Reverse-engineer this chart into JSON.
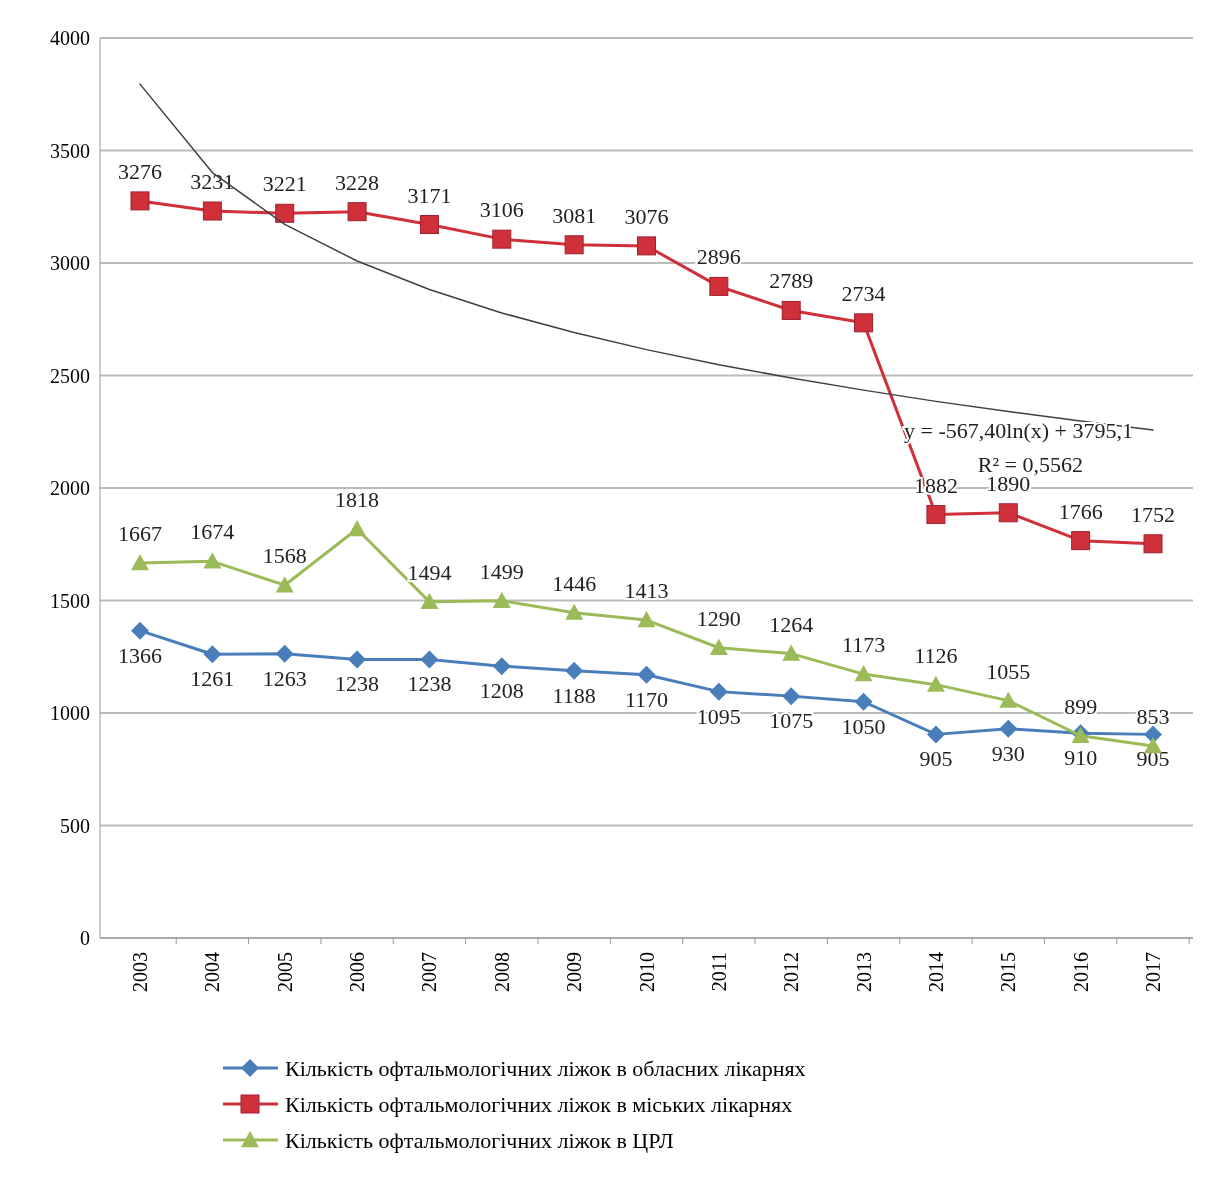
{
  "chart_data": {
    "type": "line",
    "categories": [
      "2003",
      "2004",
      "2005",
      "2006",
      "2007",
      "2008",
      "2009",
      "2010",
      "2011",
      "2012",
      "2013",
      "2014",
      "2015",
      "2016",
      "2017"
    ],
    "ylim": [
      0,
      4000
    ],
    "yticks": [
      0,
      500,
      1000,
      1500,
      2000,
      2500,
      3000,
      3500,
      4000
    ],
    "grid": "y",
    "legend": "bottom",
    "line_style": "solid",
    "series": [
      {
        "name": "Кількість офтальмологічних ліжок в обласних лікарнях",
        "color": "#4a7ebb",
        "marker": "diamond",
        "values": [
          1366,
          1261,
          1263,
          1238,
          1238,
          1208,
          1188,
          1170,
          1095,
          1075,
          1050,
          905,
          930,
          910,
          905
        ],
        "value_labels": [
          "1366",
          "1261",
          "1263",
          "1238",
          "1238",
          "1208",
          "1188",
          "1170",
          "1095",
          "1075",
          "1050",
          "905",
          "930",
          "910",
          "905"
        ]
      },
      {
        "name": "Кількість офтальмологічних ліжок в міських лікарнях",
        "color": "#d0303a",
        "marker": "square",
        "values": [
          3276,
          3231,
          3221,
          3228,
          3171,
          3106,
          3081,
          3076,
          2896,
          2789,
          2734,
          1882,
          1890,
          1766,
          1752
        ],
        "value_labels": [
          "3276",
          "3231",
          "3221",
          "3228",
          "3171",
          "3106",
          "3081",
          "3076",
          "2896",
          "2789",
          "2734",
          "1882",
          "1890",
          "1766",
          "1752"
        ]
      },
      {
        "name": "Кількість офтальмологічних ліжок в ЦРЛ",
        "color": "#9bbb59",
        "marker": "triangle",
        "values": [
          1667,
          1674,
          1568,
          1818,
          1494,
          1499,
          1446,
          1413,
          1290,
          1264,
          1173,
          1126,
          1055,
          899,
          853
        ],
        "value_labels": [
          "1667",
          "1674",
          "1568",
          "1818",
          "1494",
          "1499",
          "1446",
          "1413",
          "1290",
          "1264",
          "1173",
          "1126",
          "1055",
          "899",
          "853"
        ]
      },
      {
        "type": "line",
        "color": "#404040",
        "marker": "none",
        "values": [
          3795,
          3402,
          3172,
          3009,
          2882,
          2778,
          2691,
          2615,
          2548,
          2489,
          2435,
          2385,
          2340,
          2298,
          2258
        ]
      }
    ],
    "annotations": [
      "y = -567,40ln(x) + 3795,1",
      "R² = 0,5562"
    ]
  }
}
